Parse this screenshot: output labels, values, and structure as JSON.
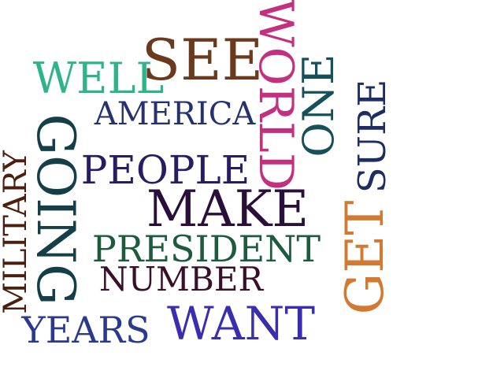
{
  "words": [
    {
      "key": "see",
      "text": "SEE",
      "color": "#6b3a1e"
    },
    {
      "key": "world",
      "text": "WORLD",
      "color": "#c2307e"
    },
    {
      "key": "one",
      "text": "ONE",
      "color": "#16505a"
    },
    {
      "key": "well",
      "text": "WELL",
      "color": "#2fb38a"
    },
    {
      "key": "america",
      "text": "AMERICA",
      "color": "#24336f"
    },
    {
      "key": "going",
      "text": "GOING",
      "color": "#143f48"
    },
    {
      "key": "military",
      "text": "MILITARY",
      "color": "#4a1f0f"
    },
    {
      "key": "people",
      "text": "PEOPLE",
      "color": "#2a1c63"
    },
    {
      "key": "sure",
      "text": "SURE",
      "color": "#1e2d62"
    },
    {
      "key": "make",
      "text": "MAKE",
      "color": "#2a0f3a"
    },
    {
      "key": "president",
      "text": "PRESIDENT",
      "color": "#1d5b3f"
    },
    {
      "key": "get",
      "text": "GET",
      "color": "#d27a32"
    },
    {
      "key": "number",
      "text": "NUMBER",
      "color": "#3a0f2a"
    },
    {
      "key": "years",
      "text": "YEARS",
      "color": "#2b3a8f"
    },
    {
      "key": "want",
      "text": "WANT",
      "color": "#3a2db0"
    }
  ]
}
